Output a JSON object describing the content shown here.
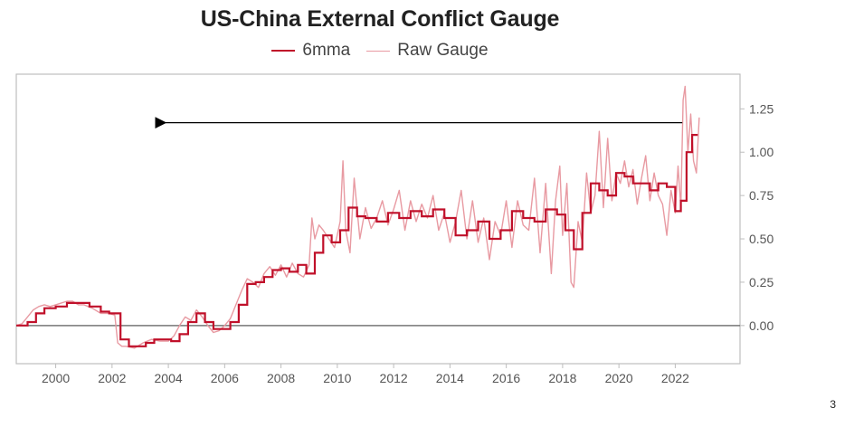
{
  "page_number": "3",
  "chart_data": {
    "type": "line",
    "title": "US-China External Conflict Gauge",
    "xlabel": "",
    "ylabel": "",
    "xlim": [
      1998.6,
      2024.3
    ],
    "ylim": [
      -0.22,
      1.45
    ],
    "x_ticks": [
      "2000",
      "2002",
      "2004",
      "2006",
      "2008",
      "2010",
      "2012",
      "2014",
      "2016",
      "2018",
      "2020",
      "2022"
    ],
    "y_ticks": [
      "0.00",
      "0.25",
      "0.50",
      "0.75",
      "1.00",
      "1.25"
    ],
    "y_axis_side": "right",
    "legend_position": "top-center",
    "zero_line": true,
    "colors": {
      "ma": "#c0102a",
      "raw": "#e89aa2",
      "axis": "#bdbdbd",
      "zero": "#777777",
      "arrow": "#000000"
    },
    "annotations": [
      {
        "type": "arrow",
        "from": [
          2022.25,
          1.17
        ],
        "to": [
          2003.9,
          1.17
        ]
      }
    ],
    "series": [
      {
        "name": "6mma",
        "x": [
          1998.6,
          1999.0,
          1999.3,
          1999.6,
          2000.0,
          2000.4,
          2000.8,
          2001.2,
          2001.6,
          2001.9,
          2002.1,
          2002.3,
          2002.6,
          2002.9,
          2003.2,
          2003.5,
          2003.8,
          2004.1,
          2004.4,
          2004.7,
          2005.0,
          2005.3,
          2005.6,
          2005.9,
          2006.2,
          2006.5,
          2006.8,
          2007.1,
          2007.4,
          2007.7,
          2008.0,
          2008.3,
          2008.6,
          2008.9,
          2009.2,
          2009.5,
          2009.8,
          2010.1,
          2010.4,
          2010.7,
          2011.0,
          2011.4,
          2011.8,
          2012.2,
          2012.6,
          2013.0,
          2013.4,
          2013.8,
          2014.2,
          2014.6,
          2015.0,
          2015.4,
          2015.8,
          2016.2,
          2016.6,
          2017.0,
          2017.4,
          2017.8,
          2018.1,
          2018.4,
          2018.7,
          2019.0,
          2019.3,
          2019.6,
          2019.9,
          2020.2,
          2020.5,
          2020.8,
          2021.1,
          2021.4,
          2021.7,
          2022.0,
          2022.2,
          2022.4,
          2022.6,
          2022.8
        ],
        "values": [
          0.0,
          0.02,
          0.07,
          0.1,
          0.11,
          0.13,
          0.13,
          0.11,
          0.08,
          0.07,
          0.07,
          -0.08,
          -0.12,
          -0.12,
          -0.1,
          -0.08,
          -0.08,
          -0.09,
          -0.05,
          0.02,
          0.07,
          0.02,
          -0.02,
          -0.02,
          0.02,
          0.12,
          0.24,
          0.25,
          0.28,
          0.32,
          0.33,
          0.31,
          0.35,
          0.3,
          0.42,
          0.52,
          0.48,
          0.55,
          0.68,
          0.63,
          0.62,
          0.6,
          0.65,
          0.62,
          0.66,
          0.63,
          0.67,
          0.62,
          0.52,
          0.55,
          0.6,
          0.5,
          0.55,
          0.66,
          0.62,
          0.6,
          0.67,
          0.64,
          0.55,
          0.44,
          0.65,
          0.82,
          0.78,
          0.75,
          0.88,
          0.86,
          0.82,
          0.82,
          0.78,
          0.82,
          0.8,
          0.66,
          0.72,
          1.0,
          1.1,
          1.1
        ]
      },
      {
        "name": "Raw Gauge",
        "x": [
          1998.6,
          1998.8,
          1999.0,
          1999.2,
          1999.4,
          1999.6,
          1999.8,
          2000.0,
          2000.2,
          2000.4,
          2000.6,
          2000.8,
          2001.0,
          2001.3,
          2001.6,
          2001.9,
          2002.1,
          2002.2,
          2002.35,
          2002.5,
          2002.8,
          2003.1,
          2003.4,
          2003.7,
          2004.0,
          2004.2,
          2004.4,
          2004.6,
          2004.8,
          2005.0,
          2005.2,
          2005.4,
          2005.6,
          2005.8,
          2006.0,
          2006.2,
          2006.4,
          2006.6,
          2006.8,
          2007.0,
          2007.2,
          2007.4,
          2007.6,
          2007.8,
          2008.0,
          2008.2,
          2008.4,
          2008.6,
          2008.8,
          2009.0,
          2009.1,
          2009.2,
          2009.35,
          2009.5,
          2009.7,
          2009.9,
          2010.1,
          2010.2,
          2010.3,
          2010.45,
          2010.6,
          2010.8,
          2011.0,
          2011.2,
          2011.4,
          2011.6,
          2011.8,
          2012.0,
          2012.2,
          2012.4,
          2012.6,
          2012.8,
          2013.0,
          2013.2,
          2013.4,
          2013.6,
          2013.8,
          2014.0,
          2014.2,
          2014.4,
          2014.6,
          2014.8,
          2015.0,
          2015.2,
          2015.4,
          2015.6,
          2015.8,
          2016.0,
          2016.2,
          2016.4,
          2016.6,
          2016.8,
          2017.0,
          2017.2,
          2017.4,
          2017.6,
          2017.75,
          2017.9,
          2018.0,
          2018.15,
          2018.3,
          2018.4,
          2018.55,
          2018.7,
          2018.85,
          2019.0,
          2019.15,
          2019.3,
          2019.45,
          2019.6,
          2019.75,
          2019.9,
          2020.05,
          2020.2,
          2020.35,
          2020.5,
          2020.65,
          2020.8,
          2020.95,
          2021.1,
          2021.25,
          2021.4,
          2021.55,
          2021.7,
          2021.85,
          2022.0,
          2022.1,
          2022.2,
          2022.28,
          2022.35,
          2022.45,
          2022.55,
          2022.65,
          2022.75,
          2022.85
        ],
        "values": [
          0.0,
          0.01,
          0.05,
          0.09,
          0.11,
          0.12,
          0.11,
          0.12,
          0.13,
          0.14,
          0.14,
          0.12,
          0.12,
          0.1,
          0.07,
          0.07,
          0.06,
          -0.1,
          -0.12,
          -0.12,
          -0.13,
          -0.1,
          -0.08,
          -0.09,
          -0.09,
          -0.06,
          0.0,
          0.05,
          0.03,
          0.09,
          0.05,
          0.0,
          -0.04,
          -0.03,
          0.0,
          0.04,
          0.12,
          0.2,
          0.27,
          0.25,
          0.22,
          0.3,
          0.34,
          0.29,
          0.35,
          0.28,
          0.36,
          0.3,
          0.28,
          0.35,
          0.62,
          0.5,
          0.58,
          0.55,
          0.5,
          0.45,
          0.6,
          0.95,
          0.55,
          0.42,
          0.85,
          0.5,
          0.68,
          0.56,
          0.62,
          0.72,
          0.58,
          0.67,
          0.78,
          0.55,
          0.72,
          0.6,
          0.7,
          0.62,
          0.75,
          0.55,
          0.65,
          0.48,
          0.6,
          0.78,
          0.5,
          0.72,
          0.48,
          0.62,
          0.38,
          0.6,
          0.52,
          0.72,
          0.45,
          0.72,
          0.58,
          0.55,
          0.85,
          0.42,
          0.82,
          0.3,
          0.72,
          0.92,
          0.52,
          0.82,
          0.25,
          0.22,
          0.6,
          0.48,
          0.88,
          0.65,
          0.75,
          1.12,
          0.68,
          1.08,
          0.72,
          0.88,
          0.82,
          0.95,
          0.8,
          0.9,
          0.7,
          0.85,
          0.98,
          0.72,
          0.88,
          0.75,
          0.7,
          0.52,
          0.78,
          0.65,
          0.92,
          0.68,
          1.3,
          1.38,
          1.0,
          1.22,
          0.95,
          0.88,
          1.2
        ]
      }
    ]
  }
}
